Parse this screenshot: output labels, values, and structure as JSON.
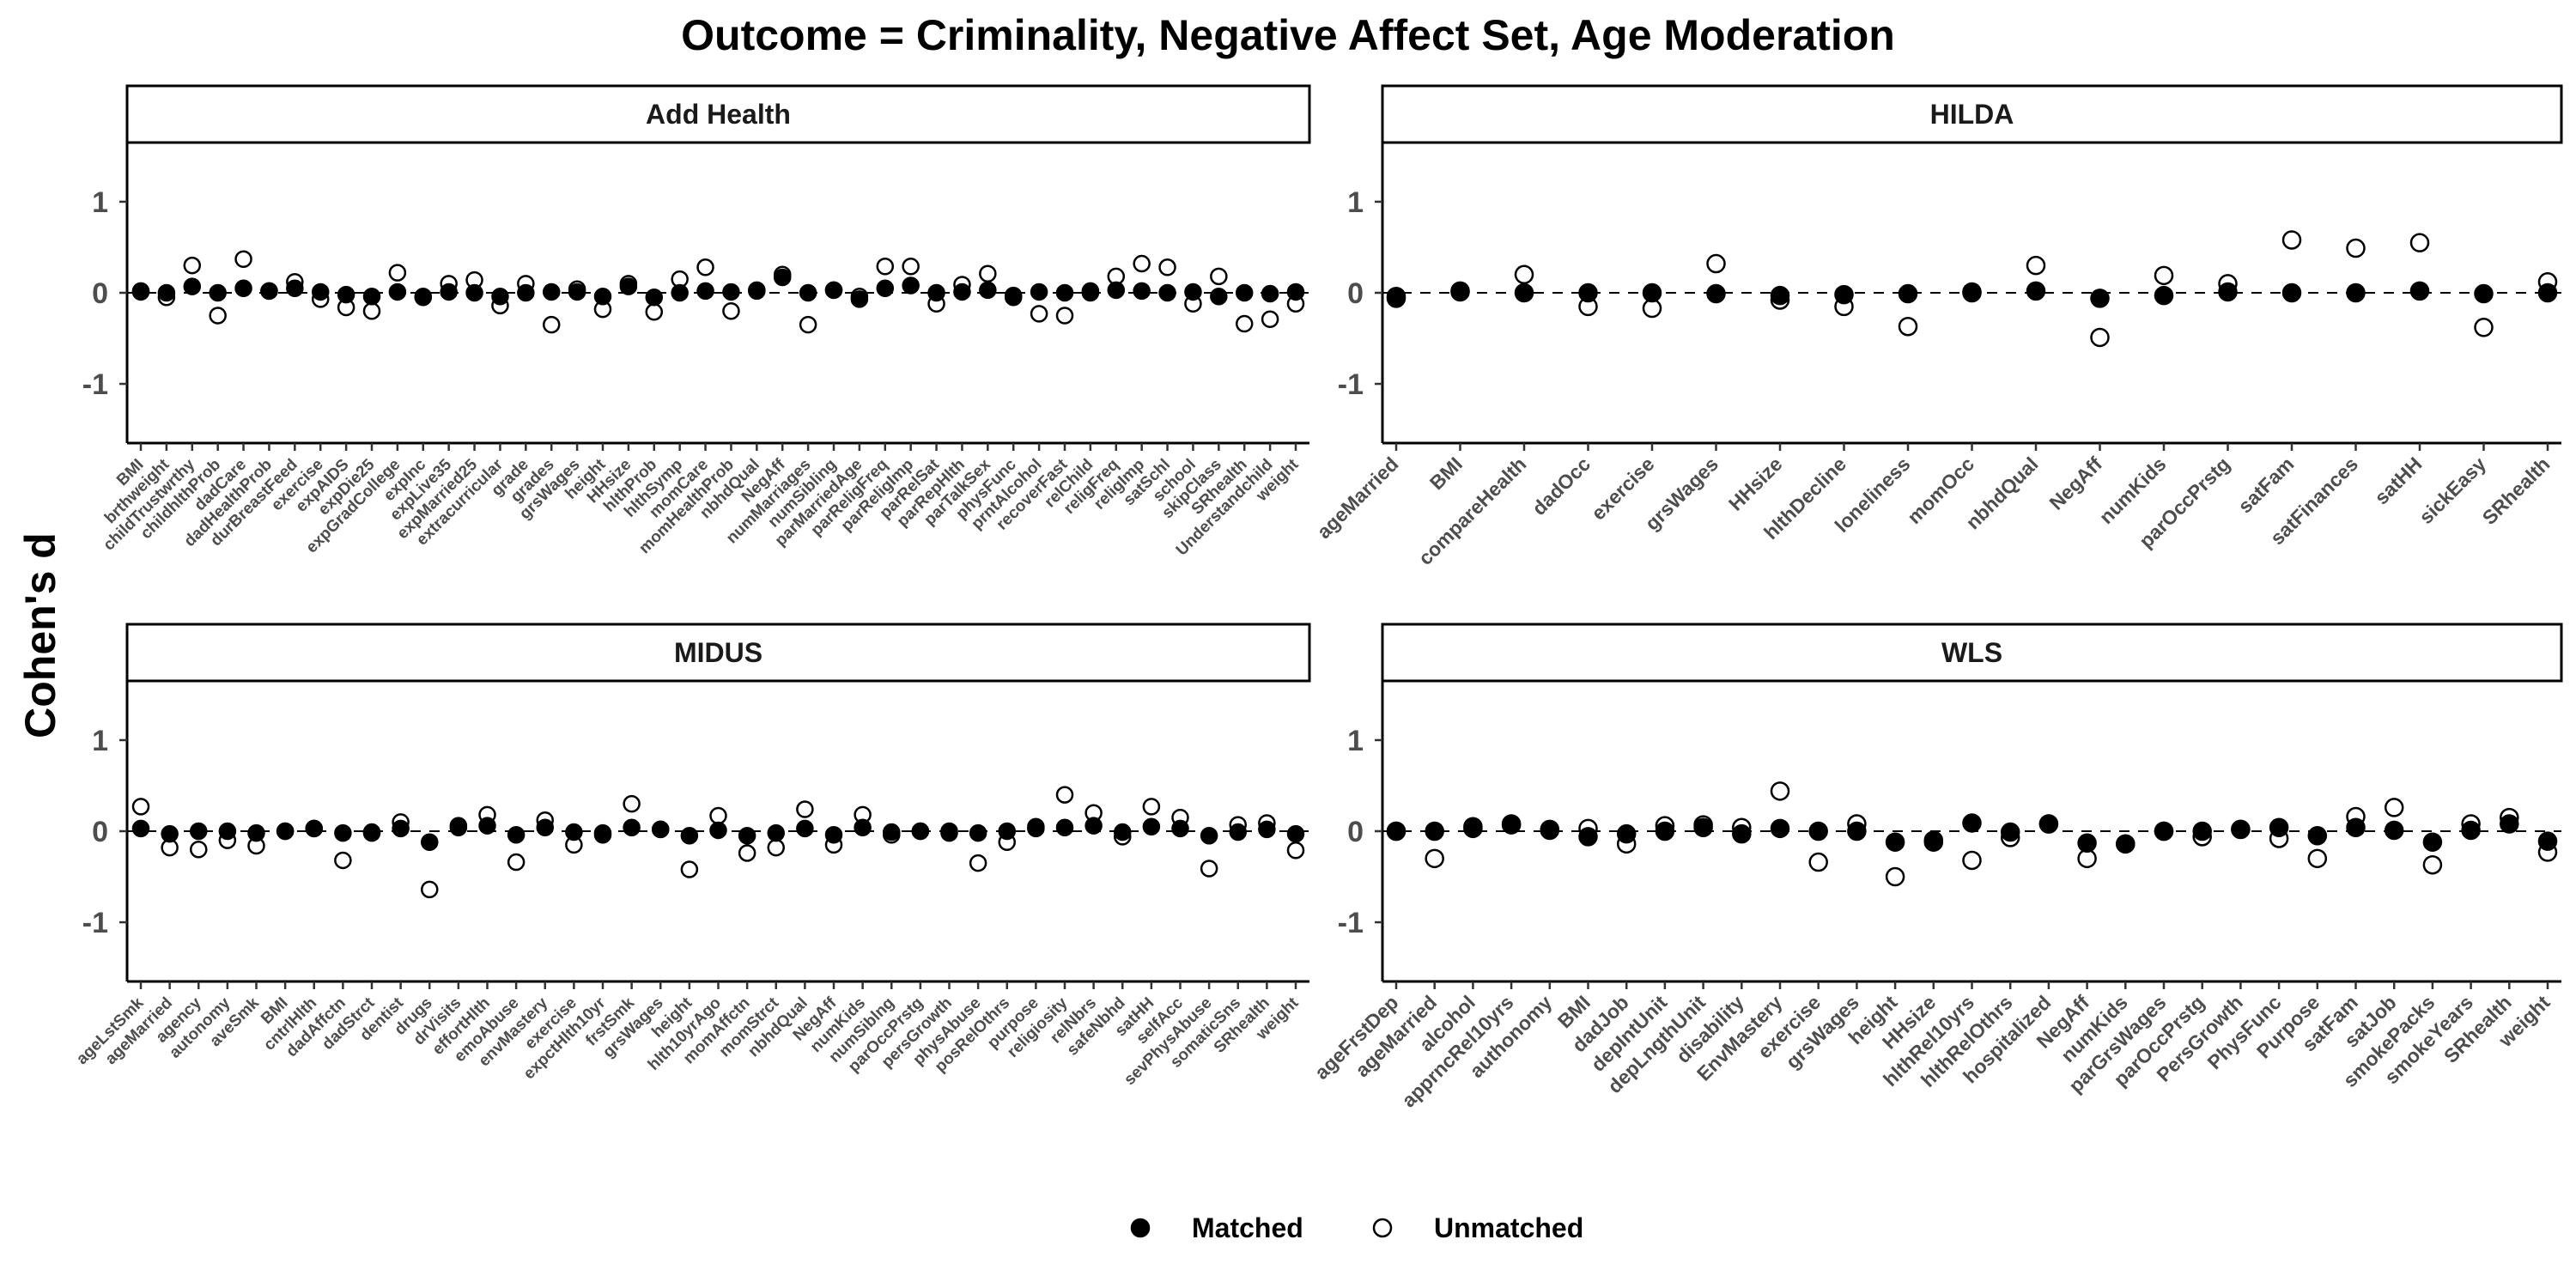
{
  "chart_data": {
    "type": "scatter",
    "title": "Outcome = Criminality, Negative Affect Set, Age Moderation",
    "ylabel": "Cohen's d",
    "ylim": [
      -1.65,
      1.65
    ],
    "yticks": [
      -1,
      0,
      1
    ],
    "reference_line": 0,
    "legend": {
      "position": "bottom",
      "entries": [
        {
          "name": "Matched",
          "marker": "filled-circle",
          "color": "#000000"
        },
        {
          "name": "Unmatched",
          "marker": "open-circle",
          "color": "#000000"
        }
      ]
    },
    "panels": [
      {
        "name": "Add Health",
        "categories": [
          "BMI",
          "brthweight",
          "childTrustwrthy",
          "childhlthProb",
          "dadCare",
          "dadHealthProb",
          "durBreastFeed",
          "exercise",
          "expAIDS",
          "expDie25",
          "expGradCollege",
          "expInc",
          "expLive35",
          "expMarried25",
          "extracurricular",
          "grade",
          "grades",
          "grsWages",
          "height",
          "HHsize",
          "hlthProb",
          "hlthSymp",
          "momCare",
          "momHealthProb",
          "nbhdQual",
          "NegAff",
          "numMarriages",
          "numSibling",
          "parMarriedAge",
          "parReligFreq",
          "parReligImp",
          "parRelSat",
          "parRepHlth",
          "parTalkSex",
          "physFunc",
          "prntAlcohol",
          "recoverFast",
          "relChild",
          "religFreq",
          "religImp",
          "satSchl",
          "school",
          "skipClass",
          "SRhealth",
          "Understandchild",
          "weight"
        ],
        "series": [
          {
            "name": "Matched",
            "values": [
              0.02,
              0.0,
              0.07,
              0.0,
              0.05,
              0.02,
              0.05,
              0.01,
              -0.02,
              -0.04,
              0.01,
              -0.05,
              0.01,
              0.0,
              -0.04,
              0.0,
              0.01,
              0.01,
              -0.04,
              0.07,
              -0.05,
              0.0,
              0.02,
              0.01,
              0.03,
              0.17,
              0.0,
              0.03,
              -0.07,
              0.05,
              0.08,
              0.0,
              0.01,
              0.03,
              -0.05,
              0.01,
              0.0,
              0.02,
              0.03,
              0.02,
              0.0,
              0.01,
              -0.04,
              0.0,
              -0.01,
              0.01
            ]
          },
          {
            "name": "Unmatched",
            "values": [
              0.01,
              -0.05,
              0.3,
              -0.25,
              0.37,
              0.02,
              0.12,
              -0.07,
              -0.16,
              -0.2,
              0.22,
              -0.04,
              0.1,
              0.14,
              -0.14,
              0.1,
              -0.35,
              0.04,
              -0.18,
              0.1,
              -0.21,
              0.15,
              0.28,
              -0.2,
              0.02,
              0.2,
              -0.35,
              0.03,
              -0.04,
              0.29,
              0.29,
              -0.12,
              0.09,
              0.21,
              -0.03,
              -0.23,
              -0.25,
              0.0,
              0.18,
              0.32,
              0.28,
              -0.12,
              0.18,
              -0.34,
              -0.29,
              -0.12
            ]
          }
        ]
      },
      {
        "name": "HILDA",
        "categories": [
          "ageMarried",
          "BMI",
          "compareHealth",
          "dadOcc",
          "exercise",
          "grsWages",
          "HHsize",
          "hlthDecline",
          "loneliness",
          "momOcc",
          "nbhdQual",
          "NegAff",
          "numKids",
          "parOccPrstg",
          "satFam",
          "satFinances",
          "satHH",
          "sickEasy",
          "SRhealth"
        ],
        "series": [
          {
            "name": "Matched",
            "values": [
              -0.04,
              0.01,
              0.0,
              0.0,
              0.0,
              -0.01,
              -0.03,
              -0.02,
              -0.01,
              0.01,
              0.02,
              -0.06,
              -0.03,
              0.01,
              0.0,
              0.0,
              0.02,
              -0.01,
              0.0
            ]
          },
          {
            "name": "Unmatched",
            "values": [
              -0.06,
              0.02,
              0.2,
              -0.15,
              -0.17,
              0.32,
              -0.08,
              -0.15,
              -0.37,
              0.0,
              0.3,
              -0.49,
              0.19,
              0.1,
              0.58,
              0.49,
              0.55,
              -0.38,
              0.12
            ]
          }
        ]
      },
      {
        "name": "MIDUS",
        "categories": [
          "ageLstSmk",
          "ageMarried",
          "agency",
          "autonomy",
          "aveSmk",
          "BMI",
          "cntrlHlth",
          "dadAffctn",
          "dadStrct",
          "dentist",
          "drugs",
          "drVisits",
          "effortHlth",
          "emoAbuse",
          "envMastery",
          "exercise",
          "expctHlth10yr",
          "frstSmk",
          "grsWages",
          "height",
          "hlth10yrAgo",
          "momAffctn",
          "momStrct",
          "nbhdQual",
          "NegAff",
          "numKids",
          "numSiblng",
          "parOccPrstg",
          "persGrowth",
          "physAbuse",
          "posRelOthrs",
          "purpose",
          "religiosity",
          "relNbrs",
          "safeNbhd",
          "satHH",
          "selfAcc",
          "sevPhysAbuse",
          "somaticSns",
          "SRhealth",
          "weight"
        ],
        "series": [
          {
            "name": "Matched",
            "values": [
              0.03,
              -0.03,
              0.0,
              0.0,
              -0.02,
              0.0,
              0.03,
              -0.02,
              -0.01,
              0.03,
              -0.12,
              0.04,
              0.06,
              -0.04,
              0.04,
              -0.01,
              -0.02,
              0.04,
              0.02,
              -0.05,
              0.01,
              -0.05,
              -0.02,
              0.03,
              -0.04,
              0.04,
              -0.01,
              0.0,
              0.0,
              -0.02,
              0.0,
              0.03,
              0.04,
              0.06,
              -0.01,
              0.05,
              0.03,
              -0.05,
              -0.01,
              0.02,
              -0.03
            ]
          },
          {
            "name": "Unmatched",
            "values": [
              0.27,
              -0.18,
              -0.2,
              -0.1,
              -0.16,
              0.0,
              0.03,
              -0.32,
              -0.02,
              0.1,
              -0.64,
              0.06,
              0.18,
              -0.34,
              0.12,
              -0.15,
              -0.04,
              0.3,
              0.02,
              -0.42,
              0.17,
              -0.24,
              -0.18,
              0.24,
              -0.15,
              0.18,
              -0.04,
              0.0,
              -0.02,
              -0.35,
              -0.12,
              0.05,
              0.4,
              0.2,
              -0.06,
              0.27,
              0.15,
              -0.41,
              0.07,
              0.09,
              -0.21
            ]
          }
        ]
      },
      {
        "name": "WLS",
        "categories": [
          "ageFrstDep",
          "ageMarried",
          "alcohol",
          "apprncRel10yrs",
          "authonomy",
          "BMI",
          "dadJob",
          "depIntUnit",
          "depLngthUnit",
          "disability",
          "EnvMastery",
          "exercise",
          "grsWages",
          "height",
          "HHsize",
          "hlthRel10yrs",
          "hlthRelOthrs",
          "hospitalized",
          "NegAff",
          "numKids",
          "parGrsWages",
          "parOccPrstg",
          "PersGrowth",
          "PhysFunc",
          "Purpose",
          "satFam",
          "satJob",
          "smokePacks",
          "smokeYears",
          "SRhealth",
          "weight"
        ],
        "series": [
          {
            "name": "Matched",
            "values": [
              0.0,
              0.0,
              0.03,
              0.07,
              0.01,
              -0.06,
              -0.03,
              0.0,
              0.04,
              -0.03,
              0.03,
              0.0,
              0.0,
              -0.12,
              -0.12,
              0.09,
              -0.01,
              0.08,
              -0.13,
              -0.14,
              0.0,
              0.0,
              0.02,
              0.04,
              -0.05,
              0.04,
              0.01,
              -0.12,
              0.01,
              0.08,
              -0.11
            ]
          },
          {
            "name": "Unmatched",
            "values": [
              0.0,
              -0.3,
              0.05,
              0.08,
              0.02,
              0.03,
              -0.14,
              0.06,
              0.07,
              0.04,
              0.44,
              -0.34,
              0.08,
              -0.5,
              -0.1,
              -0.32,
              -0.07,
              0.08,
              -0.3,
              -0.14,
              0.0,
              -0.06,
              0.02,
              -0.08,
              -0.3,
              0.16,
              0.26,
              -0.37,
              0.08,
              0.15,
              -0.23
            ]
          }
        ]
      }
    ]
  }
}
